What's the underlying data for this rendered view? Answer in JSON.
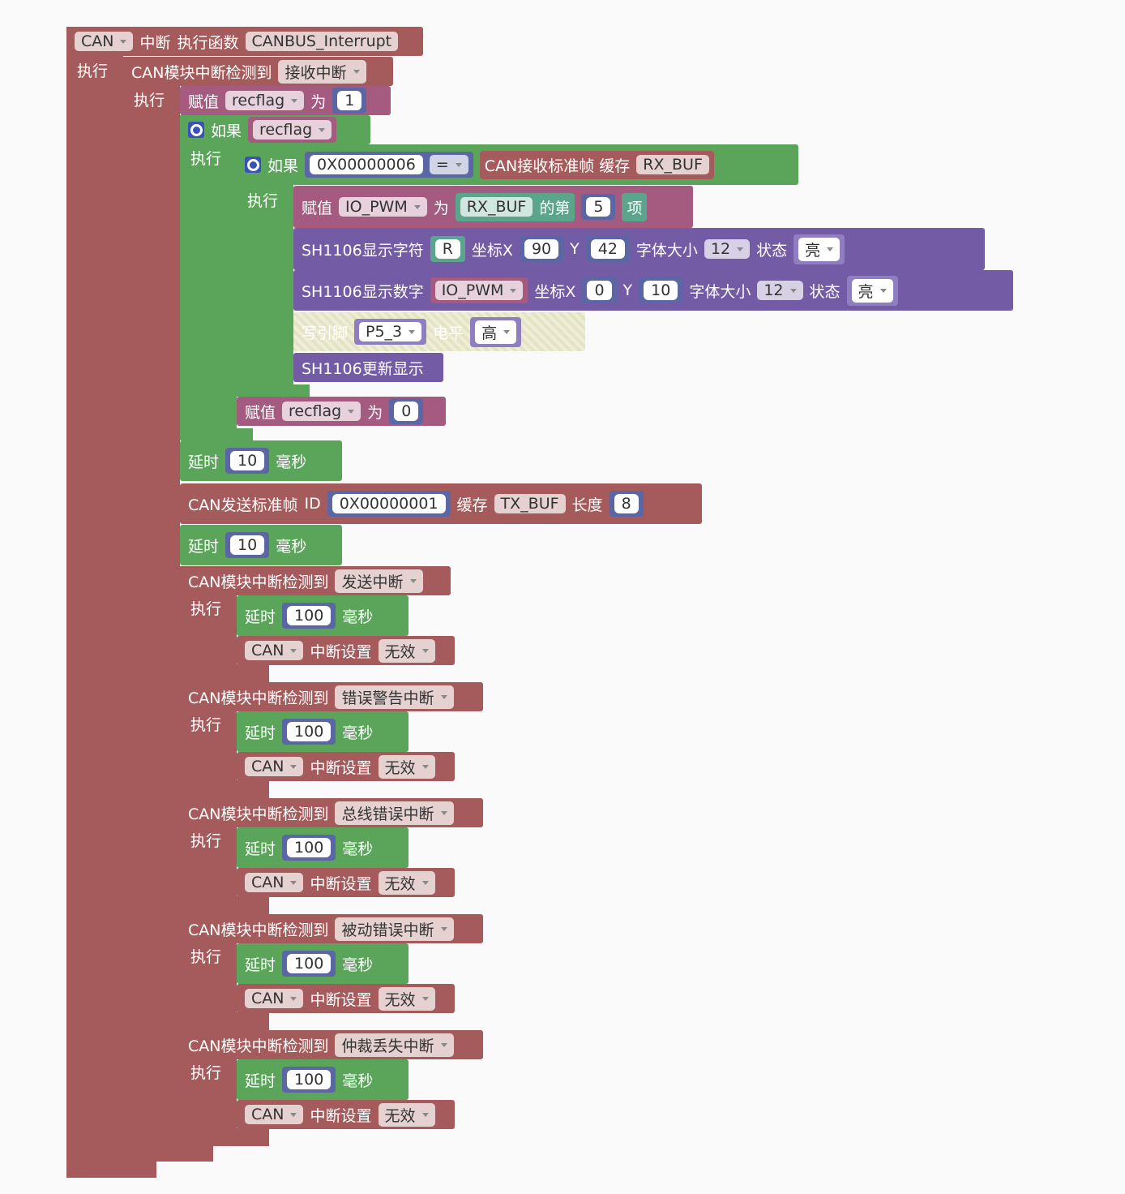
{
  "rows": [
    {
      "parts": [
        "CAN",
        "中断",
        "执行函数",
        "CANBUS_Interrupt"
      ]
    },
    {
      "parts": [
        "执行"
      ]
    },
    {
      "parts": [
        "CAN模块中断检测到",
        "接收中断"
      ]
    },
    {
      "parts": [
        "执行"
      ]
    },
    {
      "parts": [
        "赋值",
        "recflag",
        "为",
        "1"
      ]
    },
    {
      "parts": [
        "如果",
        "recflag"
      ]
    },
    {
      "parts": [
        "执行"
      ]
    },
    {
      "parts": [
        "如果",
        "0X00000006",
        "=",
        "CAN接收标准帧 缓存",
        "RX_BUF"
      ]
    },
    {
      "parts": [
        "执行"
      ]
    },
    {
      "parts": [
        "赋值",
        "IO_PWM",
        "为",
        "RX_BUF",
        "的第",
        "5",
        "项"
      ]
    },
    {
      "parts": [
        "SH1106显示字符",
        "R",
        "坐标X",
        "90",
        "Y",
        "42",
        "字体大小",
        "12",
        "状态",
        "亮"
      ]
    },
    {
      "parts": [
        "SH1106显示数字",
        "IO_PWM",
        "坐标X",
        "0",
        "Y",
        "10",
        "字体大小",
        "12",
        "状态",
        "亮"
      ]
    },
    {
      "parts": [
        "写引脚",
        "P5_3",
        "电平",
        "高"
      ]
    },
    {
      "parts": [
        "SH1106更新显示"
      ]
    },
    {
      "parts": [
        "赋值",
        "recflag",
        "为",
        "0"
      ]
    },
    {
      "parts": [
        "延时",
        "10",
        "毫秒"
      ]
    },
    {
      "parts": [
        "CAN发送标准帧",
        "ID",
        "0X00000001",
        "缓存",
        "TX_BUF",
        "长度",
        "8"
      ]
    },
    {
      "parts": [
        "延时",
        "10",
        "毫秒"
      ]
    },
    {
      "parts": [
        "CAN模块中断检测到",
        "发送中断"
      ]
    },
    {
      "parts": [
        "执行"
      ]
    },
    {
      "parts": [
        "延时",
        "100",
        "毫秒"
      ]
    },
    {
      "parts": [
        "CAN",
        "中断设置",
        "无效"
      ]
    },
    {
      "parts": [
        "CAN模块中断检测到",
        "错误警告中断"
      ]
    },
    {
      "parts": [
        "执行"
      ]
    },
    {
      "parts": [
        "延时",
        "100",
        "毫秒"
      ]
    },
    {
      "parts": [
        "CAN",
        "中断设置",
        "无效"
      ]
    },
    {
      "parts": [
        "CAN模块中断检测到",
        "总线错误中断"
      ]
    },
    {
      "parts": [
        "执行"
      ]
    },
    {
      "parts": [
        "延时",
        "100",
        "毫秒"
      ]
    },
    {
      "parts": [
        "CAN",
        "中断设置",
        "无效"
      ]
    },
    {
      "parts": [
        "CAN模块中断检测到",
        "被动错误中断"
      ]
    },
    {
      "parts": [
        "执行"
      ]
    },
    {
      "parts": [
        "延时",
        "100",
        "毫秒"
      ]
    },
    {
      "parts": [
        "CAN",
        "中断设置",
        "无效"
      ]
    },
    {
      "parts": [
        "CAN模块中断检测到",
        "仲裁丢失中断"
      ]
    },
    {
      "parts": [
        "执行"
      ]
    },
    {
      "parts": [
        "延时",
        "100",
        "毫秒"
      ]
    },
    {
      "parts": [
        "CAN",
        "中断设置",
        "无效"
      ]
    }
  ]
}
